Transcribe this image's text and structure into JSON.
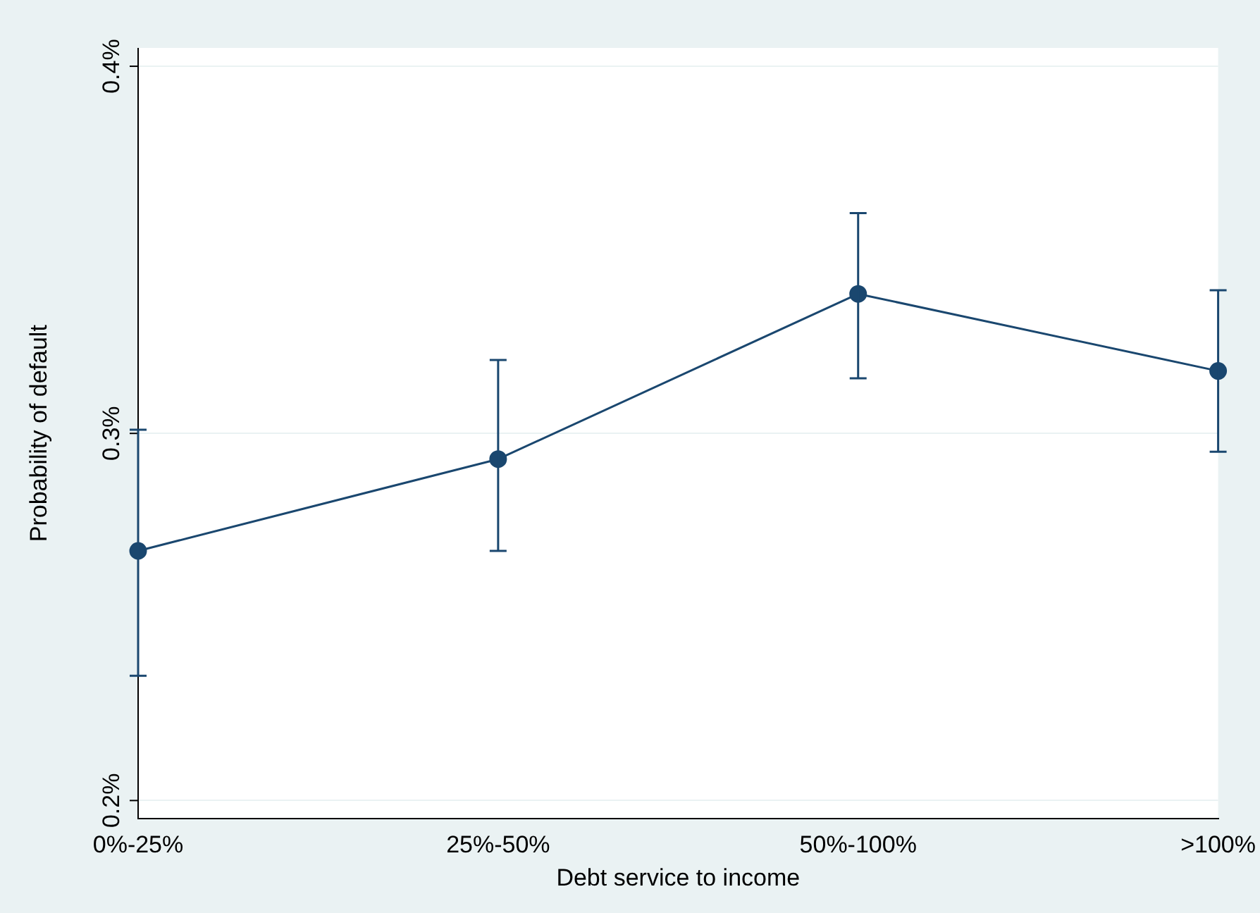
{
  "chart_data": {
    "type": "line",
    "xlabel": "Debt service to income",
    "ylabel": "Probability of default",
    "categories": [
      "0%-25%",
      "25%-50%",
      "50%-100%",
      ">100%"
    ],
    "series": [
      {
        "color": "#1a476f",
        "values": [
          0.268,
          0.293,
          0.338,
          0.317
        ],
        "errors": [
          [
            0.234,
            0.301
          ],
          [
            0.268,
            0.32
          ],
          [
            0.315,
            0.36
          ],
          [
            0.295,
            0.339
          ]
        ]
      }
    ],
    "ylim": [
      0.195,
      0.405
    ],
    "yticks": [
      {
        "value": 0.2,
        "label": "0.2%"
      },
      {
        "value": 0.3,
        "label": "0.3%"
      },
      {
        "value": 0.4,
        "label": "0.4%"
      }
    ],
    "grid": "y",
    "marker": "circle",
    "line_style": "solid"
  }
}
